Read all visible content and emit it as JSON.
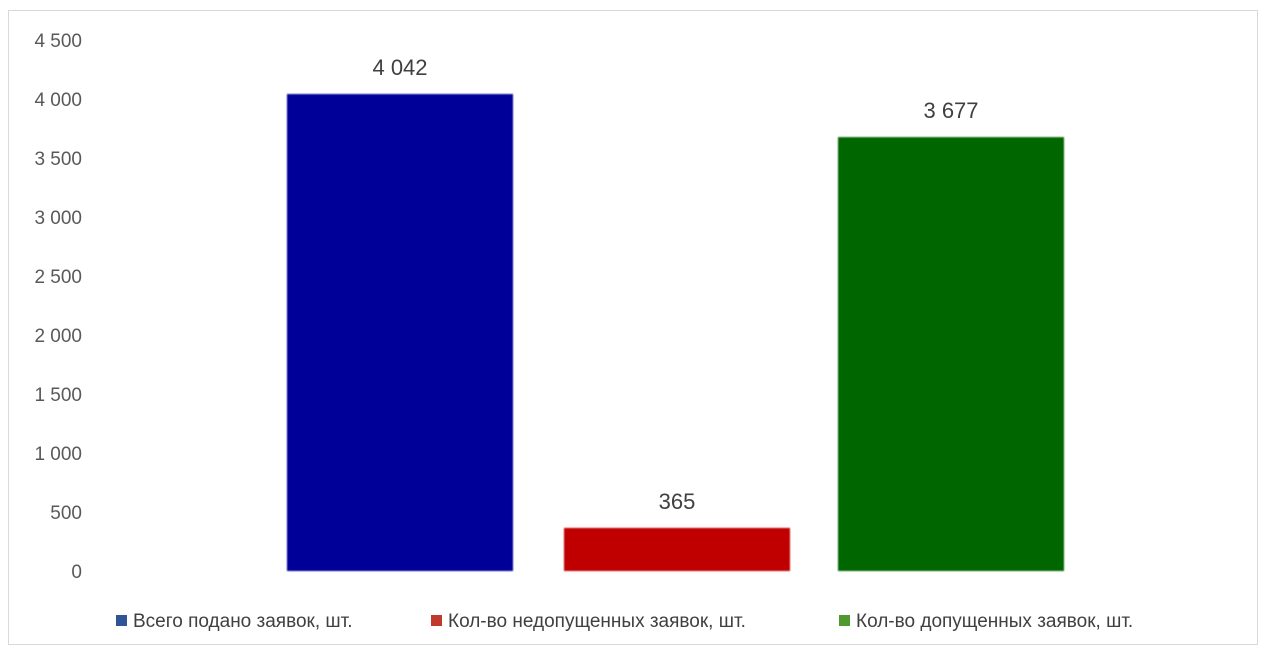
{
  "chart_data": {
    "type": "bar",
    "categories": [
      ""
    ],
    "series": [
      {
        "name": "Всего подано заявок, шт.",
        "values": [
          4042
        ],
        "label": "4 042",
        "color": "#000099"
      },
      {
        "name": "Кол-во недопущенных заявок, шт.",
        "values": [
          365
        ],
        "label": "365",
        "color": "#C00000"
      },
      {
        "name": "Кол-во допущенных заявок, шт.",
        "values": [
          3677
        ],
        "label": "3 677",
        "color": "#006600"
      }
    ],
    "y_ticks": [
      {
        "value": 0,
        "label": "0"
      },
      {
        "value": 500,
        "label": "500"
      },
      {
        "value": 1000,
        "label": "1 000"
      },
      {
        "value": 1500,
        "label": "1 500"
      },
      {
        "value": 2000,
        "label": "2 000"
      },
      {
        "value": 2500,
        "label": "2 500"
      },
      {
        "value": 3000,
        "label": "3 000"
      },
      {
        "value": 3500,
        "label": "3 500"
      },
      {
        "value": 4000,
        "label": "4 000"
      },
      {
        "value": 4500,
        "label": "4 500"
      }
    ],
    "ylim": [
      0,
      4500
    ],
    "grid": false,
    "legend": "bottom",
    "title": "",
    "xlabel": "",
    "ylabel": ""
  }
}
